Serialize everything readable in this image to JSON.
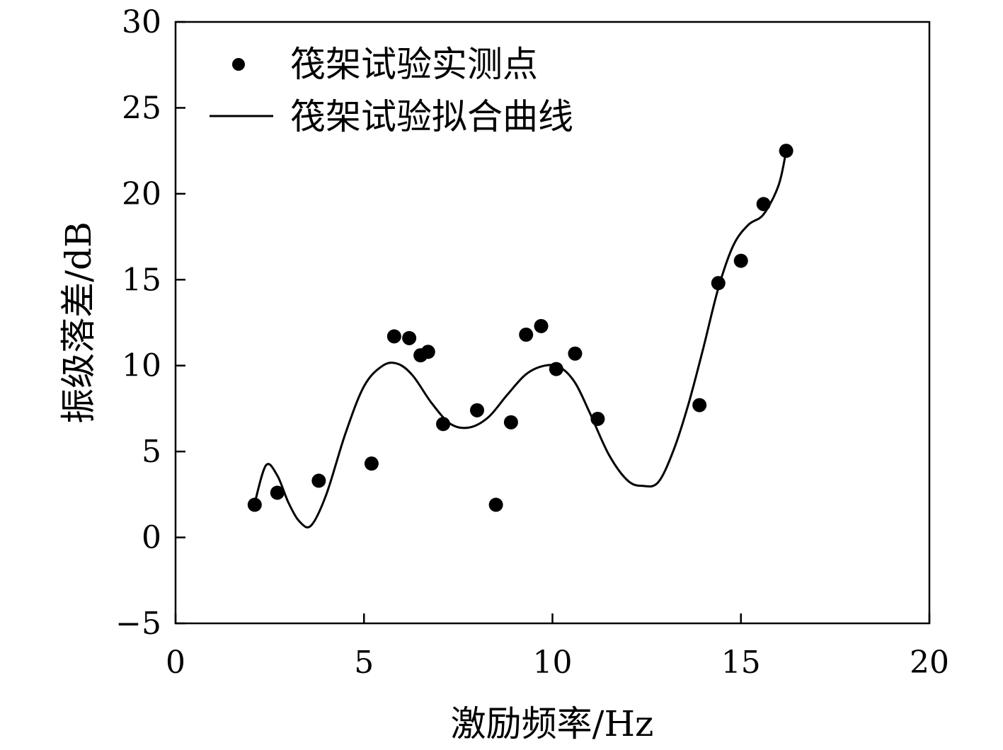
{
  "chart_data": {
    "type": "scatter",
    "xlabel": "激励频率/Hz",
    "ylabel": "振级落差/dB",
    "xlim": [
      0,
      20
    ],
    "ylim": [
      -5,
      30
    ],
    "xticks": [
      0,
      5,
      10,
      15,
      20
    ],
    "yticks": [
      -5,
      0,
      5,
      10,
      15,
      20,
      25,
      30
    ],
    "xtick_labels": [
      "0",
      "5",
      "10",
      "15",
      "20"
    ],
    "ytick_labels": [
      "−5",
      "0",
      "5",
      "10",
      "15",
      "20",
      "25",
      "30"
    ],
    "grid": false,
    "legend_position": "top-left",
    "series": [
      {
        "name": "筏架试验实测点",
        "kind": "scatter",
        "color": "#000000",
        "x": [
          2.1,
          2.7,
          3.8,
          5.2,
          5.8,
          6.2,
          6.5,
          6.7,
          7.1,
          8.0,
          8.5,
          8.9,
          9.3,
          9.7,
          10.1,
          10.6,
          11.2,
          13.9,
          14.4,
          15.0,
          15.6,
          16.2
        ],
        "y": [
          1.9,
          2.6,
          3.3,
          4.3,
          11.7,
          11.6,
          10.6,
          10.8,
          6.6,
          7.4,
          1.9,
          6.7,
          11.8,
          12.3,
          9.8,
          10.7,
          6.9,
          7.7,
          14.8,
          16.1,
          19.4,
          22.5
        ]
      },
      {
        "name": "筏架试验拟合曲线",
        "kind": "line",
        "color": "#000000",
        "x": [
          2.1,
          2.4,
          2.7,
          3.0,
          3.3,
          3.6,
          4.0,
          4.5,
          5.0,
          5.5,
          5.9,
          6.3,
          6.8,
          7.3,
          7.8,
          8.3,
          8.8,
          9.3,
          9.8,
          10.2,
          10.6,
          11.0,
          11.5,
          12.0,
          12.4,
          12.8,
          13.2,
          13.6,
          14.0,
          14.4,
          14.8,
          15.2,
          15.6,
          16.0,
          16.2
        ],
        "y": [
          2.0,
          4.2,
          3.6,
          2.0,
          0.9,
          0.7,
          2.5,
          6.0,
          8.8,
          10.0,
          10.1,
          9.4,
          7.8,
          6.6,
          6.4,
          7.0,
          8.3,
          9.5,
          10.0,
          9.9,
          9.0,
          7.2,
          4.8,
          3.3,
          3.0,
          3.2,
          5.0,
          7.7,
          11.0,
          14.5,
          17.0,
          18.2,
          18.8,
          20.5,
          22.5
        ]
      }
    ]
  }
}
